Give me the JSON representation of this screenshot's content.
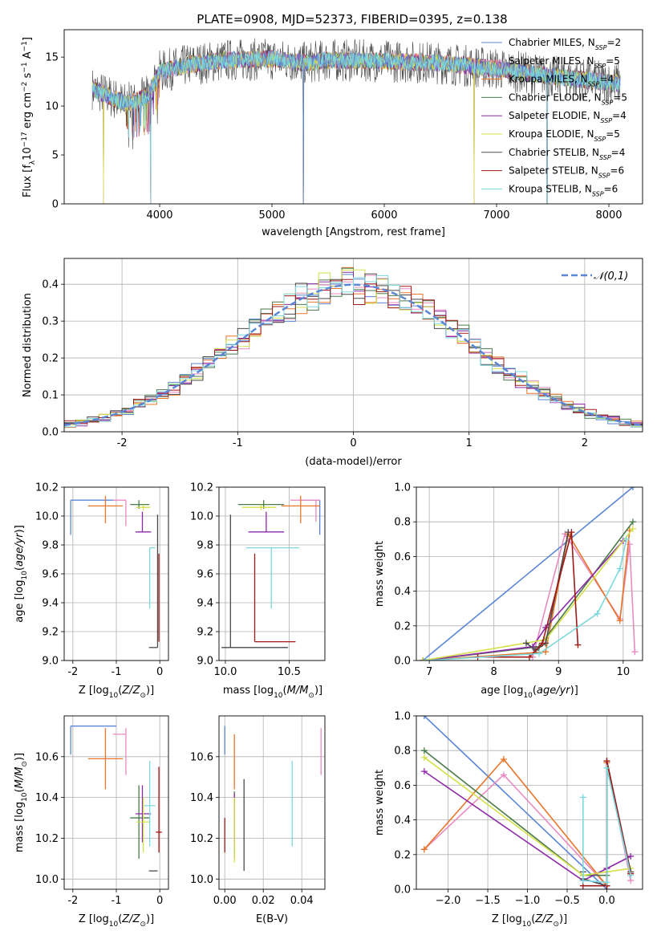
{
  "colors": {
    "Chabrier MILES": "#5b86d6",
    "Salpeter MILES": "#e98ac0",
    "Kroupa MILES": "#e8762a",
    "Chabrier ELODIE": "#4a7a4a",
    "Salpeter ELODIE": "#8e2aa8",
    "Kroupa ELODIE": "#d4e04a",
    "Chabrier STELIB": "#4a4a4a",
    "Salpeter STELIB": "#a01818",
    "Kroupa STELIB": "#7dd8dc"
  },
  "chart_data": [
    {
      "type": "line",
      "title": "PLATE=0908, MJD=52373, FIBERID=0395, z=0.138",
      "xlabel": "wavelength [Angstrom, rest frame]",
      "ylabel": "Flux [f_λ10^-17 erg cm^-2 s^-1 A^-1]",
      "xlim": [
        3150,
        8300
      ],
      "ylim": [
        0,
        17.8
      ],
      "xticks": [
        4000,
        5000,
        6000,
        7000,
        8000
      ],
      "yticks": [
        0,
        5,
        10,
        15
      ],
      "legend_position": "top-right",
      "legend": [
        {
          "model": "Chabrier MILES",
          "nssp": "2"
        },
        {
          "model": "Salpeter MILES",
          "nssp": "5"
        },
        {
          "model": "Kroupa MILES",
          "nssp": "4"
        },
        {
          "model": "Chabrier ELODIE",
          "nssp": "5"
        },
        {
          "model": "Salpeter ELODIE",
          "nssp": "4"
        },
        {
          "model": "Kroupa ELODIE",
          "nssp": "5"
        },
        {
          "model": "Chabrier STELIB",
          "nssp": "4"
        },
        {
          "model": "Salpeter STELIB",
          "nssp": "6"
        },
        {
          "model": "Kroupa STELIB",
          "nssp": "6"
        }
      ],
      "spectrum_continuum": [
        [
          3400,
          11.8
        ],
        [
          3700,
          10.2
        ],
        [
          3900,
          11.0
        ],
        [
          4000,
          13.5
        ],
        [
          4300,
          14.3
        ],
        [
          4600,
          14.7
        ],
        [
          5000,
          14.8
        ],
        [
          5300,
          14.4
        ],
        [
          5500,
          14.7
        ],
        [
          6000,
          14.6
        ],
        [
          6500,
          14.4
        ],
        [
          7000,
          13.8
        ],
        [
          7500,
          13.0
        ],
        [
          8000,
          12.4
        ],
        [
          8100,
          12.3
        ]
      ],
      "spikes_to_zero": [
        3500,
        3920,
        5280,
        6800,
        7450
      ],
      "flux_range_mean": 14.5
    },
    {
      "type": "histogram",
      "xlabel": "(data-model)/error",
      "ylabel": "Normed distribution",
      "xlim": [
        -2.5,
        2.5
      ],
      "ylim": [
        0,
        0.47
      ],
      "xticks": [
        -2,
        -1,
        0,
        1,
        2
      ],
      "yticks": [
        0,
        0.1,
        0.2,
        0.3,
        0.4
      ],
      "legend_position": "top-right",
      "reference_label": "𝒩(0,1)",
      "bins": 50,
      "bin_range": [
        -2.5,
        2.5
      ]
    },
    {
      "type": "scatter",
      "xlabel": "Z [log10(Z/Z⊙)]",
      "ylabel": "age  [log10(age/yr)]",
      "xlim": [
        -2.2,
        0.2
      ],
      "ylim": [
        9.0,
        10.2
      ],
      "xticks": [
        -2,
        -1,
        0
      ],
      "yticks": [
        9.0,
        9.2,
        9.4,
        9.6,
        9.8,
        10.0,
        10.2
      ],
      "points": [
        {
          "model": "Chabrier MILES",
          "x": -2.05,
          "y": 10.11,
          "xerr": [
            0,
            1.05
          ],
          "yerr": [
            0.24,
            0
          ]
        },
        {
          "model": "Salpeter MILES",
          "x": -0.78,
          "y": 10.11,
          "xerr": [
            0.3,
            0
          ],
          "yerr": [
            0.18,
            0
          ]
        },
        {
          "model": "Kroupa MILES",
          "x": -1.25,
          "y": 10.07,
          "xerr": [
            0.4,
            0.4
          ],
          "yerr": [
            0.12,
            0.07
          ]
        },
        {
          "model": "Chabrier ELODIE",
          "x": -0.48,
          "y": 10.08,
          "xerr": [
            0.2,
            0.24
          ],
          "yerr": [
            0.03,
            0.03
          ]
        },
        {
          "model": "Salpeter ELODIE",
          "x": -0.4,
          "y": 9.89,
          "xerr": [
            0.16,
            0.2
          ],
          "yerr": [
            0,
            0.14
          ]
        },
        {
          "model": "Kroupa ELODIE",
          "x": -0.38,
          "y": 10.06,
          "xerr": [
            0.16,
            0.16
          ],
          "yerr": [
            0.02,
            0.02
          ]
        },
        {
          "model": "Chabrier STELIB",
          "x": -0.05,
          "y": 9.09,
          "xerr": [
            0.2,
            0
          ],
          "yerr": [
            0,
            0.92
          ]
        },
        {
          "model": "Salpeter STELIB",
          "x": -0.02,
          "y": 9.13,
          "xerr": [
            0,
            0
          ],
          "yerr": [
            0,
            0.61
          ]
        },
        {
          "model": "Kroupa STELIB",
          "x": -0.23,
          "y": 9.78,
          "xerr": [
            0,
            0.13
          ],
          "yerr": [
            0.42,
            0
          ]
        }
      ]
    },
    {
      "type": "scatter",
      "xlabel": "mass [log10(M/M⊙)]",
      "ylabel": "",
      "xlim": [
        9.95,
        10.78
      ],
      "ylim": [
        9.0,
        10.2
      ],
      "xticks": [
        10.0,
        10.5
      ],
      "yticks": [
        9.0,
        9.2,
        9.4,
        9.6,
        9.8,
        10.0,
        10.2
      ],
      "points": [
        {
          "model": "Chabrier MILES",
          "x": 10.74,
          "y": 10.11,
          "xerr": [
            0.14,
            0
          ],
          "yerr": [
            0.24,
            0
          ]
        },
        {
          "model": "Salpeter MILES",
          "x": 10.71,
          "y": 10.11,
          "xerr": [
            0.2,
            0.03
          ],
          "yerr": [
            0.15,
            0
          ]
        },
        {
          "model": "Kroupa MILES",
          "x": 10.59,
          "y": 10.07,
          "xerr": [
            0.15,
            0.15
          ],
          "yerr": [
            0.12,
            0.07
          ]
        },
        {
          "model": "Chabrier ELODIE",
          "x": 10.3,
          "y": 10.08,
          "xerr": [
            0.2,
            0.16
          ],
          "yerr": [
            0.03,
            0.03
          ]
        },
        {
          "model": "Salpeter ELODIE",
          "x": 10.32,
          "y": 9.89,
          "xerr": [
            0.14,
            0.14
          ],
          "yerr": [
            0,
            0.14
          ]
        },
        {
          "model": "Kroupa ELODIE",
          "x": 10.28,
          "y": 10.06,
          "xerr": [
            0.15,
            0.12
          ],
          "yerr": [
            0.02,
            0.02
          ]
        },
        {
          "model": "Chabrier STELIB",
          "x": 10.04,
          "y": 9.09,
          "xerr": [
            0.07,
            0.45
          ],
          "yerr": [
            0,
            0.92
          ]
        },
        {
          "model": "Salpeter STELIB",
          "x": 10.23,
          "y": 9.13,
          "xerr": [
            0,
            0.32
          ],
          "yerr": [
            0,
            0.61
          ]
        },
        {
          "model": "Kroupa STELIB",
          "x": 10.36,
          "y": 9.78,
          "xerr": [
            0.2,
            0.22
          ],
          "yerr": [
            0.42,
            0
          ]
        }
      ]
    },
    {
      "type": "line",
      "xlabel": "age  [log10(age/yr)]",
      "ylabel": "mass weight",
      "xlim": [
        6.8,
        10.3
      ],
      "ylim": [
        0,
        1.0
      ],
      "xticks": [
        7,
        8,
        9,
        10
      ],
      "yticks": [
        0.0,
        0.2,
        0.4,
        0.6,
        0.8,
        1.0
      ],
      "series": [
        {
          "model": "Chabrier MILES",
          "points": [
            [
              6.9,
              0.0
            ],
            [
              10.15,
              1.0
            ]
          ]
        },
        {
          "model": "Salpeter MILES",
          "points": [
            [
              8.6,
              0.02
            ],
            [
              9.1,
              0.73
            ],
            [
              9.95,
              0.24
            ],
            [
              10.1,
              0.67
            ],
            [
              10.18,
              0.05
            ]
          ]
        },
        {
          "model": "Kroupa MILES",
          "points": [
            [
              6.9,
              0.0
            ],
            [
              8.8,
              0.05
            ],
            [
              9.15,
              0.73
            ],
            [
              9.95,
              0.23
            ],
            [
              10.1,
              0.75
            ]
          ]
        },
        {
          "model": "Chabrier ELODIE",
          "points": [
            [
              6.9,
              0.0
            ],
            [
              8.7,
              0.08
            ],
            [
              10.15,
              0.8
            ]
          ]
        },
        {
          "model": "Salpeter ELODIE",
          "points": [
            [
              6.9,
              0.0
            ],
            [
              8.6,
              0.08
            ],
            [
              8.8,
              0.19
            ],
            [
              10.0,
              0.69
            ]
          ]
        },
        {
          "model": "Kroupa ELODIE",
          "points": [
            [
              6.9,
              0.0
            ],
            [
              8.8,
              0.12
            ],
            [
              10.15,
              0.76
            ]
          ]
        },
        {
          "model": "Chabrier STELIB",
          "points": [
            [
              8.5,
              0.1
            ],
            [
              8.65,
              0.06
            ],
            [
              8.8,
              0.1
            ],
            [
              9.15,
              0.74
            ]
          ]
        },
        {
          "model": "Salpeter STELIB",
          "points": [
            [
              7.75,
              0.02
            ],
            [
              8.55,
              0.02
            ],
            [
              8.75,
              0.1
            ],
            [
              9.2,
              0.74
            ],
            [
              9.3,
              0.09
            ]
          ]
        },
        {
          "model": "Kroupa STELIB",
          "points": [
            [
              6.95,
              0.0
            ],
            [
              8.7,
              0.04
            ],
            [
              9.6,
              0.27
            ],
            [
              9.95,
              0.53
            ],
            [
              10.05,
              0.7
            ]
          ]
        }
      ]
    },
    {
      "type": "scatter",
      "xlabel": "Z [log10(Z/Z⊙)]",
      "ylabel": "mass [log10(M/M⊙)]",
      "xlim": [
        -2.2,
        0.2
      ],
      "ylim": [
        9.95,
        10.8
      ],
      "xticks": [
        -2,
        -1,
        0
      ],
      "yticks": [
        10.0,
        10.2,
        10.4,
        10.6
      ],
      "points": [
        {
          "model": "Chabrier MILES",
          "x": -2.05,
          "y": 10.75,
          "xerr": [
            0,
            1.05
          ],
          "yerr": [
            0.14,
            0
          ]
        },
        {
          "model": "Salpeter MILES",
          "x": -0.78,
          "y": 10.71,
          "xerr": [
            0.3,
            0
          ],
          "yerr": [
            0.2,
            0.03
          ]
        },
        {
          "model": "Kroupa MILES",
          "x": -1.25,
          "y": 10.59,
          "xerr": [
            0.4,
            0.4
          ],
          "yerr": [
            0.15,
            0.15
          ]
        },
        {
          "model": "Chabrier ELODIE",
          "x": -0.48,
          "y": 10.3,
          "xerr": [
            0.2,
            0.24
          ],
          "yerr": [
            0.2,
            0.16
          ]
        },
        {
          "model": "Salpeter ELODIE",
          "x": -0.4,
          "y": 10.32,
          "xerr": [
            0.16,
            0.2
          ],
          "yerr": [
            0.14,
            0.14
          ]
        },
        {
          "model": "Kroupa ELODIE",
          "x": -0.38,
          "y": 10.28,
          "xerr": [
            0.16,
            0.16
          ],
          "yerr": [
            0.15,
            0.12
          ]
        },
        {
          "model": "Chabrier STELIB",
          "x": -0.05,
          "y": 10.04,
          "xerr": [
            0.2,
            0
          ],
          "yerr": [
            0,
            0
          ]
        },
        {
          "model": "Salpeter STELIB",
          "x": -0.02,
          "y": 10.23,
          "xerr": [
            0.07,
            0.07
          ],
          "yerr": [
            0.1,
            0.32
          ]
        },
        {
          "model": "Kroupa STELIB",
          "x": -0.23,
          "y": 10.36,
          "xerr": [
            0.13,
            0.13
          ],
          "yerr": [
            0.2,
            0.22
          ]
        }
      ]
    },
    {
      "type": "scatter",
      "xlabel": "E(B-V)",
      "ylabel": "",
      "xlim": [
        -0.003,
        0.052
      ],
      "ylim": [
        9.95,
        10.8
      ],
      "xticks": [
        0.0,
        0.02,
        0.04
      ],
      "yticks": [
        10.0,
        10.2,
        10.4,
        10.6
      ],
      "points": [
        {
          "model": "Chabrier MILES",
          "x": 0.0,
          "y": 10.75,
          "yerr": [
            0.14,
            0
          ]
        },
        {
          "model": "Salpeter MILES",
          "x": 0.05,
          "y": 10.71,
          "yerr": [
            0.2,
            0.03
          ]
        },
        {
          "model": "Kroupa MILES",
          "x": 0.005,
          "y": 10.59,
          "yerr": [
            0.15,
            0.12
          ]
        },
        {
          "model": "Chabrier ELODIE",
          "x": 0.005,
          "y": 10.3,
          "yerr": [
            0.2,
            0.13
          ]
        },
        {
          "model": "Salpeter ELODIE",
          "x": 0.005,
          "y": 10.32,
          "yerr": [
            0.14,
            0.1
          ]
        },
        {
          "model": "Kroupa ELODIE",
          "x": 0.005,
          "y": 10.28,
          "yerr": [
            0.2,
            0.12
          ]
        },
        {
          "model": "Chabrier STELIB",
          "x": 0.01,
          "y": 10.34,
          "yerr": [
            0.3,
            0.15
          ]
        },
        {
          "model": "Salpeter STELIB",
          "x": 0.0,
          "y": 10.23,
          "yerr": [
            0.1,
            0.07
          ]
        },
        {
          "model": "Kroupa STELIB",
          "x": 0.035,
          "y": 10.36,
          "yerr": [
            0.2,
            0.22
          ]
        }
      ]
    },
    {
      "type": "line",
      "xlabel": "Z [log10(Z/Z⊙)]",
      "ylabel": "mass weight",
      "xlim": [
        -2.4,
        0.45
      ],
      "ylim": [
        0,
        1.0
      ],
      "xticks": [
        -2.0,
        -1.5,
        -1.0,
        -0.5,
        0.0
      ],
      "yticks": [
        0.0,
        0.2,
        0.4,
        0.6,
        0.8,
        1.0
      ],
      "series": [
        {
          "model": "Chabrier MILES",
          "points": [
            [
              -2.3,
              1.0
            ],
            [
              0.0,
              0.0
            ]
          ]
        },
        {
          "model": "Salpeter MILES",
          "points": [
            [
              -2.3,
              0.23
            ],
            [
              -1.3,
              0.66
            ],
            [
              0.0,
              0.02
            ],
            [
              0.0,
              0.73
            ],
            [
              0.3,
              0.05
            ]
          ]
        },
        {
          "model": "Kroupa MILES",
          "points": [
            [
              -2.3,
              0.23
            ],
            [
              -1.3,
              0.75
            ],
            [
              0.0,
              0.02
            ],
            [
              0.0,
              0.73
            ],
            [
              0.3,
              0.09
            ]
          ]
        },
        {
          "model": "Chabrier ELODIE",
          "points": [
            [
              -2.3,
              0.8
            ],
            [
              -0.3,
              0.08
            ],
            [
              0.0,
              0.08
            ]
          ]
        },
        {
          "model": "Salpeter ELODIE",
          "points": [
            [
              -2.3,
              0.68
            ],
            [
              -0.3,
              0.05
            ],
            [
              0.0,
              0.12
            ],
            [
              0.3,
              0.19
            ]
          ]
        },
        {
          "model": "Kroupa ELODIE",
          "points": [
            [
              -2.3,
              0.76
            ],
            [
              -0.3,
              0.08
            ],
            [
              0.0,
              0.1
            ],
            [
              0.3,
              0.12
            ]
          ]
        },
        {
          "model": "Chabrier STELIB",
          "points": [
            [
              -0.3,
              0.1
            ],
            [
              -0.3,
              0.06
            ],
            [
              0.0,
              0.02
            ],
            [
              0.0,
              0.74
            ],
            [
              0.3,
              0.1
            ]
          ]
        },
        {
          "model": "Salpeter STELIB",
          "points": [
            [
              -0.3,
              0.02
            ],
            [
              0.0,
              0.02
            ],
            [
              0.0,
              0.74
            ],
            [
              0.3,
              0.09
            ]
          ]
        },
        {
          "model": "Kroupa STELIB",
          "points": [
            [
              -0.3,
              0.53
            ],
            [
              -0.3,
              0.05
            ],
            [
              0.0,
              0.04
            ],
            [
              0.0,
              0.7
            ],
            [
              0.3,
              0.08
            ]
          ]
        }
      ]
    }
  ]
}
